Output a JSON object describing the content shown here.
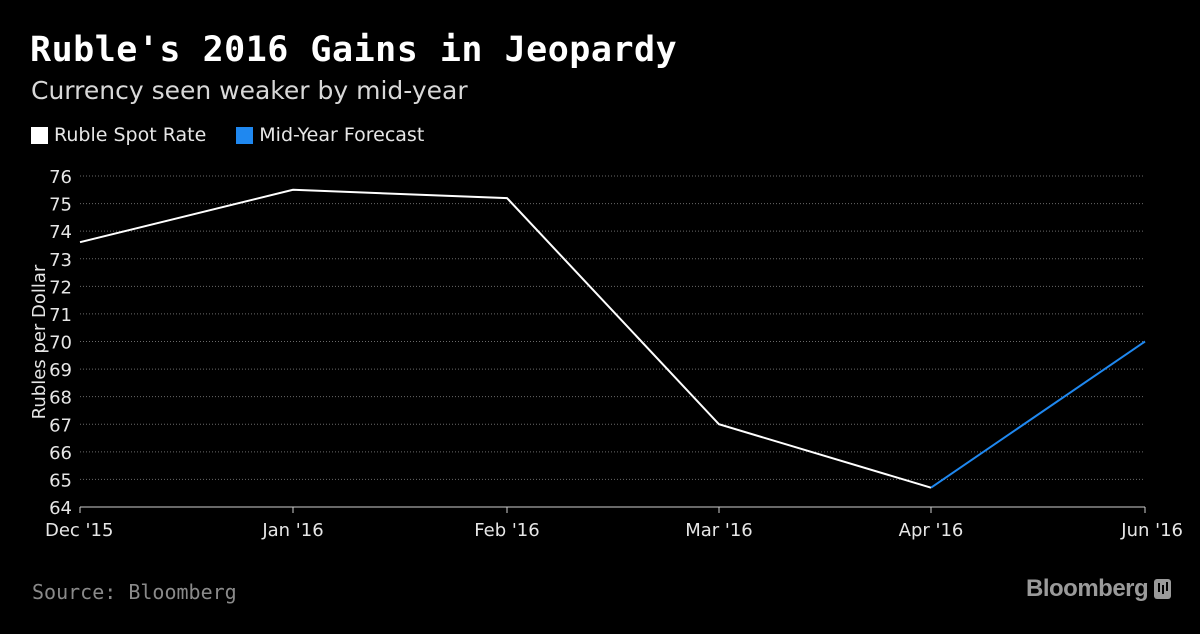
{
  "header": {
    "title": "Ruble's 2016 Gains in Jeopardy",
    "subtitle": "Currency seen weaker by mid-year"
  },
  "legend": {
    "items": [
      {
        "label": "Ruble Spot Rate",
        "color": "#ffffff"
      },
      {
        "label": "Mid-Year Forecast",
        "color": "#1f88f0"
      }
    ]
  },
  "footer": {
    "source": "Source: Bloomberg",
    "brand": "Bloomberg"
  },
  "chart_data": {
    "type": "line",
    "ylabel": "Rubles per Dollar",
    "ylim": [
      64,
      76
    ],
    "yticks": [
      64,
      65,
      66,
      67,
      68,
      69,
      70,
      71,
      72,
      73,
      74,
      75,
      76
    ],
    "xticks": [
      "Dec '15",
      "Jan '16",
      "Feb '16",
      "Mar '16",
      "Apr '16",
      "Jun '16"
    ],
    "grid": true,
    "series": [
      {
        "name": "Ruble Spot Rate",
        "color": "#ffffff",
        "x": [
          "Dec '15",
          "Dec '15",
          "Jan '16",
          "Feb '16",
          "Mar '16",
          "Apr '16"
        ],
        "values": [
          73.6,
          73.6,
          75.5,
          75.2,
          67.0,
          64.7
        ]
      },
      {
        "name": "Mid-Year Forecast",
        "color": "#1f88f0",
        "x": [
          "Apr '16",
          "Jun '16"
        ],
        "values": [
          64.7,
          70.0
        ]
      }
    ]
  }
}
